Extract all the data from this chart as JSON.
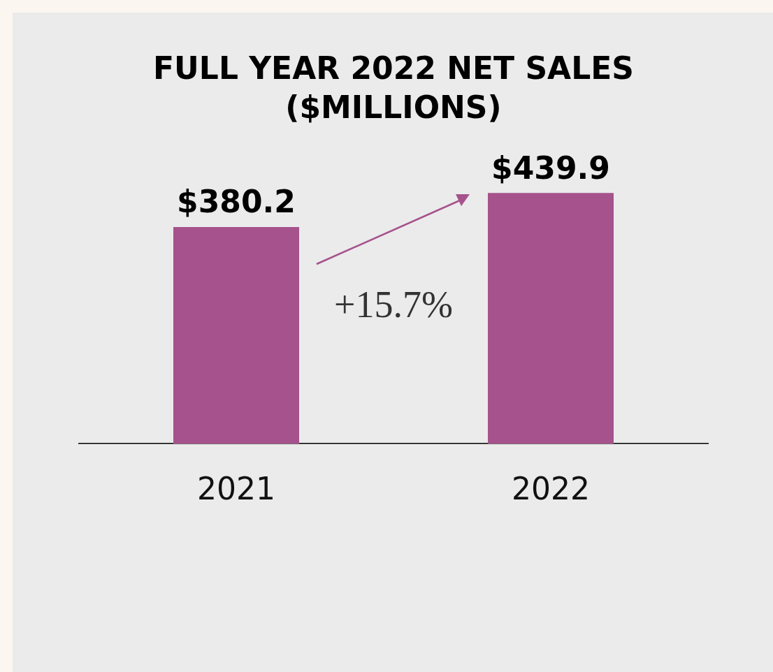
{
  "chart_data": {
    "type": "bar",
    "title": "FULL YEAR 2022 NET SALES ($MILLIONS)",
    "categories": [
      "2021",
      "2022"
    ],
    "values": [
      380.2,
      439.9
    ],
    "value_labels": [
      "$380.2",
      "$439.9"
    ],
    "color": "#a6528c",
    "tick_labels": "x",
    "annotations": [
      "+15.7%"
    ]
  }
}
